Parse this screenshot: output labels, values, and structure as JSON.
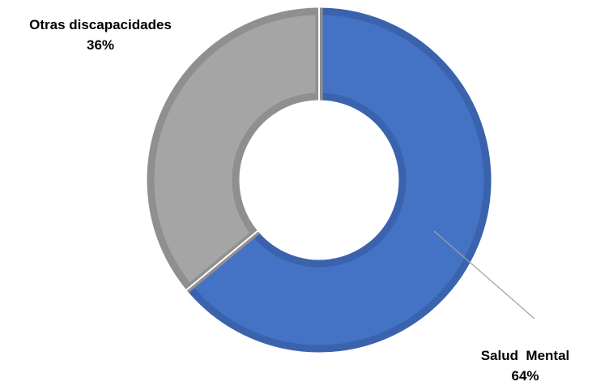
{
  "chart_data": {
    "type": "pie",
    "donut": true,
    "title": "",
    "slices": [
      {
        "name": "Salud Mental",
        "value": 64,
        "percent_label": "64%",
        "color": "#4472C4",
        "border_color": "#3B63AD"
      },
      {
        "name": "Otras discapacidades",
        "value": 36,
        "percent_label": "36%",
        "color": "#A5A5A5",
        "border_color": "#8F8F8F"
      }
    ],
    "label_names": {
      "salud": "Salud  Mental",
      "otras": "Otras discapacidades"
    },
    "start_angle_deg": 0,
    "direction": "clockwise",
    "legend": "none"
  }
}
